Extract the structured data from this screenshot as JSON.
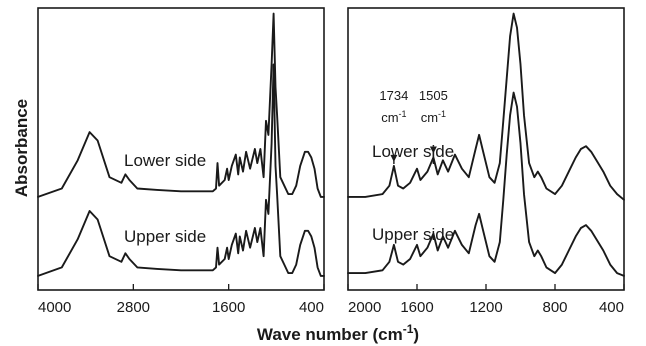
{
  "chart_data": [
    {
      "type": "line",
      "panel": "left",
      "xlabel": "Wave number (cm-1)",
      "xlabel_text": "Wave number (cm",
      "xlabel_sup": "-1",
      "xlabel_close": ")",
      "ylabel": "Absorbance",
      "xlim": [
        4000,
        400
      ],
      "x_reversed": true,
      "xticks": [
        4000,
        2800,
        1600,
        400
      ],
      "ylim": [
        0,
        1
      ],
      "y_ticks_shown": false,
      "grid": false,
      "series": [
        {
          "name": "Lower side",
          "points": [
            [
              4000,
              0.33
            ],
            [
              3700,
              0.36
            ],
            [
              3500,
              0.46
            ],
            [
              3350,
              0.56
            ],
            [
              3250,
              0.53
            ],
            [
              3100,
              0.4
            ],
            [
              2950,
              0.38
            ],
            [
              2900,
              0.41
            ],
            [
              2850,
              0.39
            ],
            [
              2750,
              0.36
            ],
            [
              2500,
              0.355
            ],
            [
              2200,
              0.35
            ],
            [
              2000,
              0.35
            ],
            [
              1800,
              0.35
            ],
            [
              1760,
              0.36
            ],
            [
              1740,
              0.45
            ],
            [
              1720,
              0.37
            ],
            [
              1650,
              0.39
            ],
            [
              1620,
              0.43
            ],
            [
              1600,
              0.39
            ],
            [
              1560,
              0.44
            ],
            [
              1510,
              0.48
            ],
            [
              1480,
              0.41
            ],
            [
              1460,
              0.47
            ],
            [
              1420,
              0.42
            ],
            [
              1380,
              0.49
            ],
            [
              1330,
              0.43
            ],
            [
              1270,
              0.5
            ],
            [
              1240,
              0.45
            ],
            [
              1200,
              0.5
            ],
            [
              1160,
              0.4
            ],
            [
              1130,
              0.6
            ],
            [
              1100,
              0.55
            ],
            [
              1060,
              0.8
            ],
            [
              1035,
              0.98
            ],
            [
              1010,
              0.72
            ],
            [
              990,
              0.62
            ],
            [
              950,
              0.4
            ],
            [
              900,
              0.37
            ],
            [
              850,
              0.34
            ],
            [
              800,
              0.34
            ],
            [
              750,
              0.37
            ],
            [
              700,
              0.44
            ],
            [
              640,
              0.49
            ],
            [
              600,
              0.49
            ],
            [
              560,
              0.47
            ],
            [
              520,
              0.43
            ],
            [
              480,
              0.36
            ],
            [
              440,
              0.33
            ],
            [
              400,
              0.33
            ]
          ]
        },
        {
          "name": "Upper side",
          "points": [
            [
              4000,
              0.05
            ],
            [
              3700,
              0.08
            ],
            [
              3500,
              0.18
            ],
            [
              3350,
              0.28
            ],
            [
              3250,
              0.25
            ],
            [
              3100,
              0.12
            ],
            [
              2950,
              0.1
            ],
            [
              2900,
              0.13
            ],
            [
              2850,
              0.11
            ],
            [
              2750,
              0.08
            ],
            [
              2500,
              0.075
            ],
            [
              2200,
              0.07
            ],
            [
              2000,
              0.07
            ],
            [
              1800,
              0.07
            ],
            [
              1760,
              0.08
            ],
            [
              1740,
              0.15
            ],
            [
              1720,
              0.09
            ],
            [
              1650,
              0.11
            ],
            [
              1620,
              0.15
            ],
            [
              1600,
              0.11
            ],
            [
              1560,
              0.16
            ],
            [
              1510,
              0.2
            ],
            [
              1480,
              0.13
            ],
            [
              1460,
              0.19
            ],
            [
              1420,
              0.14
            ],
            [
              1380,
              0.21
            ],
            [
              1330,
              0.15
            ],
            [
              1270,
              0.22
            ],
            [
              1240,
              0.17
            ],
            [
              1200,
              0.22
            ],
            [
              1160,
              0.12
            ],
            [
              1130,
              0.32
            ],
            [
              1100,
              0.27
            ],
            [
              1060,
              0.52
            ],
            [
              1035,
              0.8
            ],
            [
              1010,
              0.44
            ],
            [
              990,
              0.34
            ],
            [
              950,
              0.12
            ],
            [
              900,
              0.09
            ],
            [
              850,
              0.06
            ],
            [
              800,
              0.06
            ],
            [
              750,
              0.09
            ],
            [
              700,
              0.16
            ],
            [
              640,
              0.21
            ],
            [
              600,
              0.21
            ],
            [
              560,
              0.19
            ],
            [
              520,
              0.15
            ],
            [
              480,
              0.08
            ],
            [
              440,
              0.05
            ],
            [
              400,
              0.05
            ]
          ]
        }
      ]
    },
    {
      "type": "line",
      "panel": "right",
      "xlabel": "Wave number (cm-1)",
      "ylabel": "Absorbance",
      "xlim": [
        2000,
        400
      ],
      "x_reversed": true,
      "xticks": [
        2000,
        1600,
        1200,
        800,
        400
      ],
      "ylim": [
        0,
        1
      ],
      "y_ticks_shown": false,
      "grid": false,
      "annotations": [
        {
          "text": "1734",
          "unit": "cm",
          "sup": "-1",
          "x": 1734
        },
        {
          "text": "1505",
          "unit": "cm",
          "sup": "-1",
          "x": 1505
        }
      ],
      "series": [
        {
          "name": "Lower side",
          "points": [
            [
              2000,
              0.33
            ],
            [
              1900,
              0.33
            ],
            [
              1800,
              0.34
            ],
            [
              1760,
              0.37
            ],
            [
              1734,
              0.44
            ],
            [
              1710,
              0.37
            ],
            [
              1680,
              0.36
            ],
            [
              1640,
              0.38
            ],
            [
              1600,
              0.43
            ],
            [
              1580,
              0.39
            ],
            [
              1540,
              0.42
            ],
            [
              1505,
              0.47
            ],
            [
              1480,
              0.41
            ],
            [
              1450,
              0.46
            ],
            [
              1420,
              0.42
            ],
            [
              1380,
              0.48
            ],
            [
              1340,
              0.43
            ],
            [
              1300,
              0.4
            ],
            [
              1260,
              0.5
            ],
            [
              1240,
              0.55
            ],
            [
              1220,
              0.5
            ],
            [
              1180,
              0.4
            ],
            [
              1150,
              0.38
            ],
            [
              1120,
              0.45
            ],
            [
              1100,
              0.6
            ],
            [
              1080,
              0.75
            ],
            [
              1060,
              0.9
            ],
            [
              1040,
              0.98
            ],
            [
              1020,
              0.93
            ],
            [
              1000,
              0.8
            ],
            [
              980,
              0.62
            ],
            [
              950,
              0.45
            ],
            [
              920,
              0.4
            ],
            [
              900,
              0.42
            ],
            [
              880,
              0.4
            ],
            [
              850,
              0.36
            ],
            [
              800,
              0.34
            ],
            [
              760,
              0.37
            ],
            [
              720,
              0.42
            ],
            [
              680,
              0.47
            ],
            [
              650,
              0.5
            ],
            [
              620,
              0.51
            ],
            [
              590,
              0.49
            ],
            [
              560,
              0.46
            ],
            [
              520,
              0.42
            ],
            [
              480,
              0.37
            ],
            [
              440,
              0.34
            ],
            [
              400,
              0.32
            ]
          ]
        },
        {
          "name": "Upper side",
          "points": [
            [
              2000,
              0.06
            ],
            [
              1900,
              0.06
            ],
            [
              1800,
              0.07
            ],
            [
              1760,
              0.1
            ],
            [
              1734,
              0.16
            ],
            [
              1710,
              0.1
            ],
            [
              1680,
              0.09
            ],
            [
              1640,
              0.11
            ],
            [
              1600,
              0.16
            ],
            [
              1580,
              0.12
            ],
            [
              1540,
              0.15
            ],
            [
              1505,
              0.2
            ],
            [
              1480,
              0.14
            ],
            [
              1450,
              0.19
            ],
            [
              1420,
              0.15
            ],
            [
              1380,
              0.21
            ],
            [
              1340,
              0.16
            ],
            [
              1300,
              0.13
            ],
            [
              1260,
              0.23
            ],
            [
              1240,
              0.27
            ],
            [
              1220,
              0.22
            ],
            [
              1180,
              0.12
            ],
            [
              1150,
              0.1
            ],
            [
              1120,
              0.17
            ],
            [
              1100,
              0.32
            ],
            [
              1080,
              0.48
            ],
            [
              1060,
              0.62
            ],
            [
              1040,
              0.7
            ],
            [
              1020,
              0.65
            ],
            [
              1000,
              0.52
            ],
            [
              980,
              0.34
            ],
            [
              950,
              0.17
            ],
            [
              920,
              0.12
            ],
            [
              900,
              0.14
            ],
            [
              880,
              0.12
            ],
            [
              850,
              0.08
            ],
            [
              800,
              0.06
            ],
            [
              760,
              0.09
            ],
            [
              720,
              0.14
            ],
            [
              680,
              0.19
            ],
            [
              650,
              0.22
            ],
            [
              620,
              0.23
            ],
            [
              590,
              0.21
            ],
            [
              560,
              0.18
            ],
            [
              520,
              0.14
            ],
            [
              480,
              0.09
            ],
            [
              440,
              0.06
            ],
            [
              400,
              0.05
            ]
          ]
        }
      ]
    }
  ]
}
